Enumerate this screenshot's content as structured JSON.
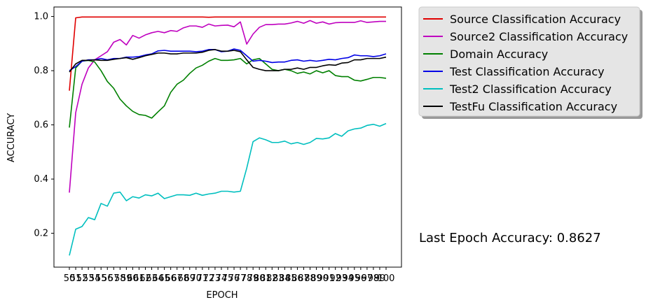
{
  "chart_data": {
    "type": "line",
    "xlabel": "EPOCH",
    "ylabel": "ACCURACY",
    "x_start": 50,
    "x_end": 100,
    "ylim": [
      0.075,
      1.035
    ],
    "yticks": [
      0.2,
      0.4,
      0.6,
      0.8,
      1.0
    ],
    "grid": false,
    "legend": "outside-top-right",
    "annotation": "Last Epoch Accuracy: 0.8627",
    "series": [
      {
        "name": "Source Classification Accuracy",
        "color": "#e00000",
        "values": [
          0.726,
          0.995,
          0.998,
          0.998,
          0.998,
          0.998,
          0.998,
          0.998,
          0.998,
          0.998,
          0.998,
          0.998,
          0.998,
          0.998,
          0.998,
          0.998,
          0.998,
          0.998,
          0.998,
          0.998,
          0.998,
          0.998,
          0.997,
          0.998,
          0.998,
          0.998,
          0.998,
          0.998,
          0.998,
          0.998,
          0.998,
          0.998,
          0.998,
          0.998,
          0.998,
          0.998,
          0.998,
          0.998,
          0.998,
          0.998,
          0.998,
          0.998,
          0.998,
          0.998,
          0.998,
          0.998,
          0.998,
          0.998,
          0.998,
          0.998,
          0.998
        ]
      },
      {
        "name": "Source2 Classification Accuracy",
        "color": "#bf00bf",
        "values": [
          0.35,
          0.645,
          0.75,
          0.81,
          0.84,
          0.855,
          0.87,
          0.905,
          0.915,
          0.895,
          0.93,
          0.92,
          0.932,
          0.94,
          0.945,
          0.94,
          0.948,
          0.945,
          0.958,
          0.965,
          0.965,
          0.96,
          0.972,
          0.965,
          0.967,
          0.968,
          0.962,
          0.98,
          0.898,
          0.935,
          0.96,
          0.97,
          0.97,
          0.972,
          0.972,
          0.976,
          0.982,
          0.975,
          0.985,
          0.975,
          0.98,
          0.972,
          0.977,
          0.978,
          0.978,
          0.978,
          0.984,
          0.978,
          0.98,
          0.982,
          0.982
        ]
      },
      {
        "name": "Domain Accuracy",
        "color": "#008000",
        "values": [
          0.59,
          0.81,
          0.835,
          0.838,
          0.832,
          0.8,
          0.76,
          0.735,
          0.695,
          0.67,
          0.65,
          0.638,
          0.635,
          0.625,
          0.648,
          0.67,
          0.72,
          0.75,
          0.765,
          0.79,
          0.81,
          0.82,
          0.835,
          0.845,
          0.838,
          0.838,
          0.84,
          0.845,
          0.825,
          0.84,
          0.845,
          0.825,
          0.805,
          0.8,
          0.805,
          0.8,
          0.79,
          0.795,
          0.788,
          0.8,
          0.792,
          0.8,
          0.782,
          0.778,
          0.778,
          0.765,
          0.762,
          0.768,
          0.775,
          0.775,
          0.772
        ]
      },
      {
        "name": "Test Classification Accuracy",
        "color": "#0000e6",
        "values": [
          0.8,
          0.815,
          0.835,
          0.84,
          0.84,
          0.845,
          0.84,
          0.845,
          0.845,
          0.85,
          0.85,
          0.852,
          0.858,
          0.862,
          0.873,
          0.875,
          0.872,
          0.872,
          0.872,
          0.872,
          0.87,
          0.872,
          0.878,
          0.878,
          0.87,
          0.872,
          0.88,
          0.875,
          0.855,
          0.835,
          0.838,
          0.835,
          0.83,
          0.832,
          0.832,
          0.838,
          0.84,
          0.835,
          0.838,
          0.835,
          0.838,
          0.842,
          0.84,
          0.845,
          0.848,
          0.858,
          0.855,
          0.855,
          0.852,
          0.855,
          0.862
        ]
      },
      {
        "name": "Test2 Classification Accuracy",
        "color": "#00bfbf",
        "values": [
          0.118,
          0.215,
          0.225,
          0.258,
          0.25,
          0.31,
          0.3,
          0.348,
          0.352,
          0.32,
          0.335,
          0.33,
          0.342,
          0.338,
          0.348,
          0.328,
          0.335,
          0.342,
          0.342,
          0.34,
          0.348,
          0.34,
          0.345,
          0.348,
          0.355,
          0.355,
          0.352,
          0.355,
          0.44,
          0.538,
          0.552,
          0.545,
          0.535,
          0.535,
          0.54,
          0.53,
          0.535,
          0.528,
          0.535,
          0.55,
          0.548,
          0.552,
          0.568,
          0.558,
          0.578,
          0.585,
          0.588,
          0.598,
          0.602,
          0.595,
          0.605
        ]
      },
      {
        "name": "TestFu Classification Accuracy",
        "color": "#000000",
        "values": [
          0.795,
          0.825,
          0.838,
          0.838,
          0.84,
          0.838,
          0.838,
          0.842,
          0.845,
          0.848,
          0.842,
          0.848,
          0.855,
          0.86,
          0.865,
          0.865,
          0.862,
          0.862,
          0.865,
          0.865,
          0.865,
          0.868,
          0.875,
          0.878,
          0.872,
          0.872,
          0.875,
          0.87,
          0.84,
          0.812,
          0.805,
          0.8,
          0.8,
          0.8,
          0.805,
          0.805,
          0.81,
          0.805,
          0.812,
          0.812,
          0.818,
          0.822,
          0.82,
          0.828,
          0.83,
          0.84,
          0.84,
          0.845,
          0.845,
          0.845,
          0.85
        ]
      }
    ]
  }
}
